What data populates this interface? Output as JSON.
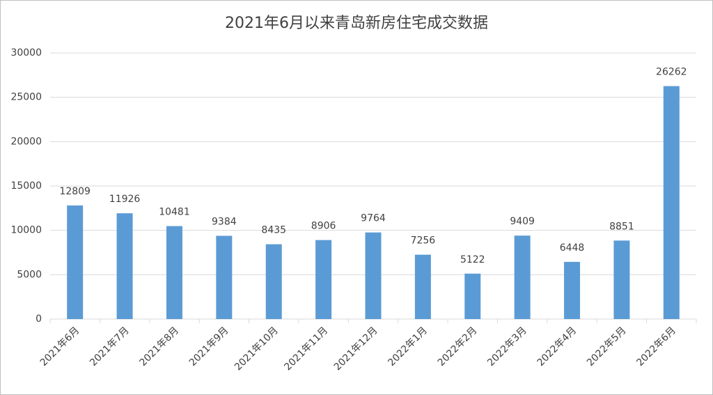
{
  "chart_data": {
    "type": "bar",
    "title": "2021年6月以来青岛新房住宅成交数据",
    "categories": [
      "2021年6月",
      "2021年7月",
      "2021年8月",
      "2021年9月",
      "2021年10月",
      "2021年11月",
      "2021年12月",
      "2022年1月",
      "2022年2月",
      "2022年3月",
      "2022年4月",
      "2022年5月",
      "2022年6月"
    ],
    "values": [
      12809,
      11926,
      10481,
      9384,
      8435,
      8906,
      9764,
      7256,
      5122,
      9409,
      6448,
      8851,
      26262
    ],
    "color": "#5b9bd5",
    "ylim": [
      0,
      30000
    ],
    "yticks": [
      0,
      5000,
      10000,
      15000,
      20000,
      25000,
      30000
    ],
    "grid": true
  }
}
